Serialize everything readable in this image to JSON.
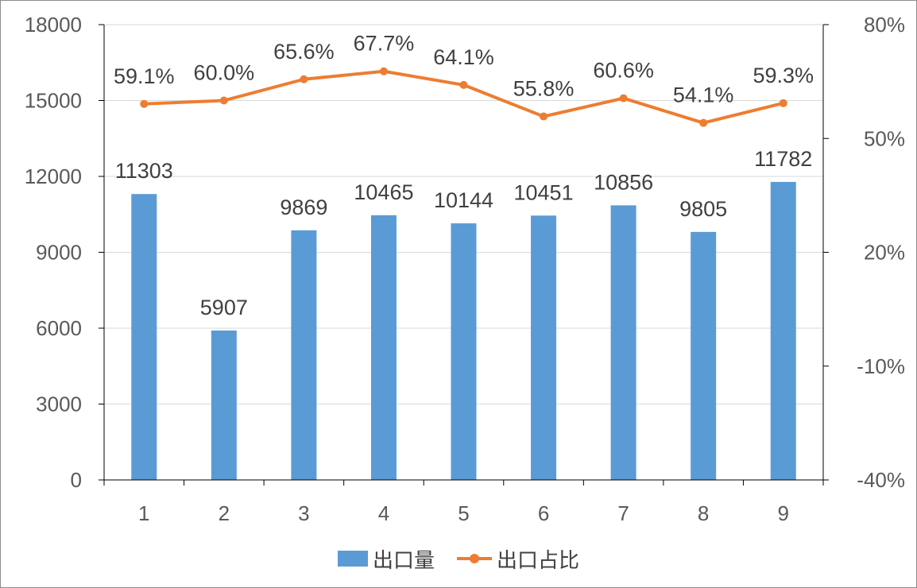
{
  "chart_data": {
    "type": "bar+line",
    "categories": [
      "1",
      "2",
      "3",
      "4",
      "5",
      "6",
      "7",
      "8",
      "9"
    ],
    "series": [
      {
        "name": "出口量",
        "type": "bar",
        "axis": "left",
        "color": "#5B9BD5",
        "values": [
          11303,
          5907,
          9869,
          10465,
          10144,
          10451,
          10856,
          9805,
          11782
        ],
        "labels": [
          "11303",
          "5907",
          "9869",
          "10465",
          "10144",
          "10451",
          "10856",
          "9805",
          "11782"
        ]
      },
      {
        "name": "出口占比",
        "type": "line",
        "axis": "right",
        "color": "#ED7D31",
        "values": [
          59.1,
          60.0,
          65.6,
          67.7,
          64.1,
          55.8,
          60.6,
          54.1,
          59.3
        ],
        "labels": [
          "59.1%",
          "60.0%",
          "65.6%",
          "67.7%",
          "64.1%",
          "55.8%",
          "60.6%",
          "54.1%",
          "59.3%"
        ]
      }
    ],
    "y_left": {
      "min": 0,
      "max": 18000,
      "ticks": [
        "0",
        "3000",
        "6000",
        "9000",
        "12000",
        "15000",
        "18000"
      ]
    },
    "y_right": {
      "min": -40,
      "max": 80,
      "unit": "%",
      "ticks": [
        "-40%",
        "-10%",
        "20%",
        "50%",
        "80%"
      ]
    },
    "grid": true,
    "legend_position": "bottom"
  }
}
